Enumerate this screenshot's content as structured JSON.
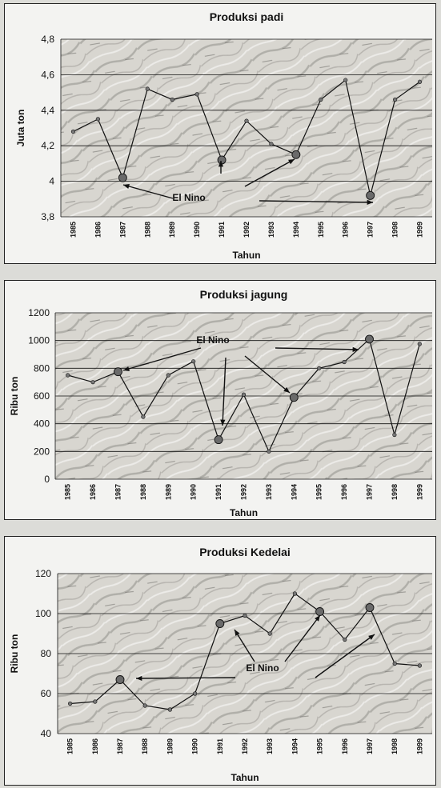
{
  "chart_data": [
    {
      "type": "line",
      "title": "Produksi padi",
      "xlabel": "Tahun",
      "ylabel": "Juta ton",
      "ylim": [
        3.8,
        4.8
      ],
      "yticks": [
        "3,8",
        "4",
        "4,2",
        "4,4",
        "4,6",
        "4,8"
      ],
      "categories": [
        "1985",
        "1986",
        "1987",
        "1988",
        "1989",
        "1990",
        "1991",
        "1992",
        "1993",
        "1994",
        "1995",
        "1996",
        "1997",
        "1998",
        "1999"
      ],
      "values": [
        4.28,
        4.35,
        4.02,
        4.52,
        4.46,
        4.49,
        4.12,
        4.34,
        4.21,
        4.15,
        4.46,
        4.57,
        3.92,
        4.46,
        4.56
      ],
      "highlight_years": [
        "1987",
        "1991",
        "1994",
        "1997"
      ],
      "annotation": "El Nino",
      "grid": true
    },
    {
      "type": "line",
      "title": "Produksi jagung",
      "xlabel": "Tahun",
      "ylabel": "Ribu ton",
      "ylim": [
        0,
        1200
      ],
      "yticks": [
        "0",
        "200",
        "400",
        "600",
        "800",
        "1000",
        "1200"
      ],
      "categories": [
        "1985",
        "1986",
        "1987",
        "1988",
        "1989",
        "1990",
        "1991",
        "1992",
        "1993",
        "1994",
        "1995",
        "1996",
        "1997",
        "1998",
        "1999"
      ],
      "values": [
        750,
        700,
        775,
        450,
        750,
        850,
        285,
        610,
        200,
        590,
        800,
        845,
        1010,
        320,
        975
      ],
      "highlight_years": [
        "1987",
        "1991",
        "1994",
        "1997"
      ],
      "annotation": "El Nino",
      "grid": true
    },
    {
      "type": "line",
      "title": "Produksi Kedelai",
      "xlabel": "Tahun",
      "ylabel": "Ribu ton",
      "ylim": [
        40,
        120
      ],
      "yticks": [
        "40",
        "60",
        "80",
        "100",
        "120"
      ],
      "categories": [
        "1985",
        "1986",
        "1987",
        "1988",
        "1989",
        "1990",
        "1991",
        "1992",
        "1993",
        "1994",
        "1995",
        "1996",
        "1997",
        "1998",
        "1999"
      ],
      "values": [
        55,
        56,
        67,
        54,
        52,
        60,
        95,
        99,
        90,
        110,
        101,
        87,
        103,
        75,
        74
      ],
      "highlight_years": [
        "1987",
        "1991",
        "1995",
        "1997"
      ],
      "annotation": "El Nino",
      "grid": true
    }
  ],
  "colors": {
    "panel_bg": "#f3f3f1",
    "plot_texture_light": "#d8d6d0",
    "plot_texture_dark": "#8f8d88",
    "line": "#111111",
    "marker": "#6a6a6a"
  }
}
